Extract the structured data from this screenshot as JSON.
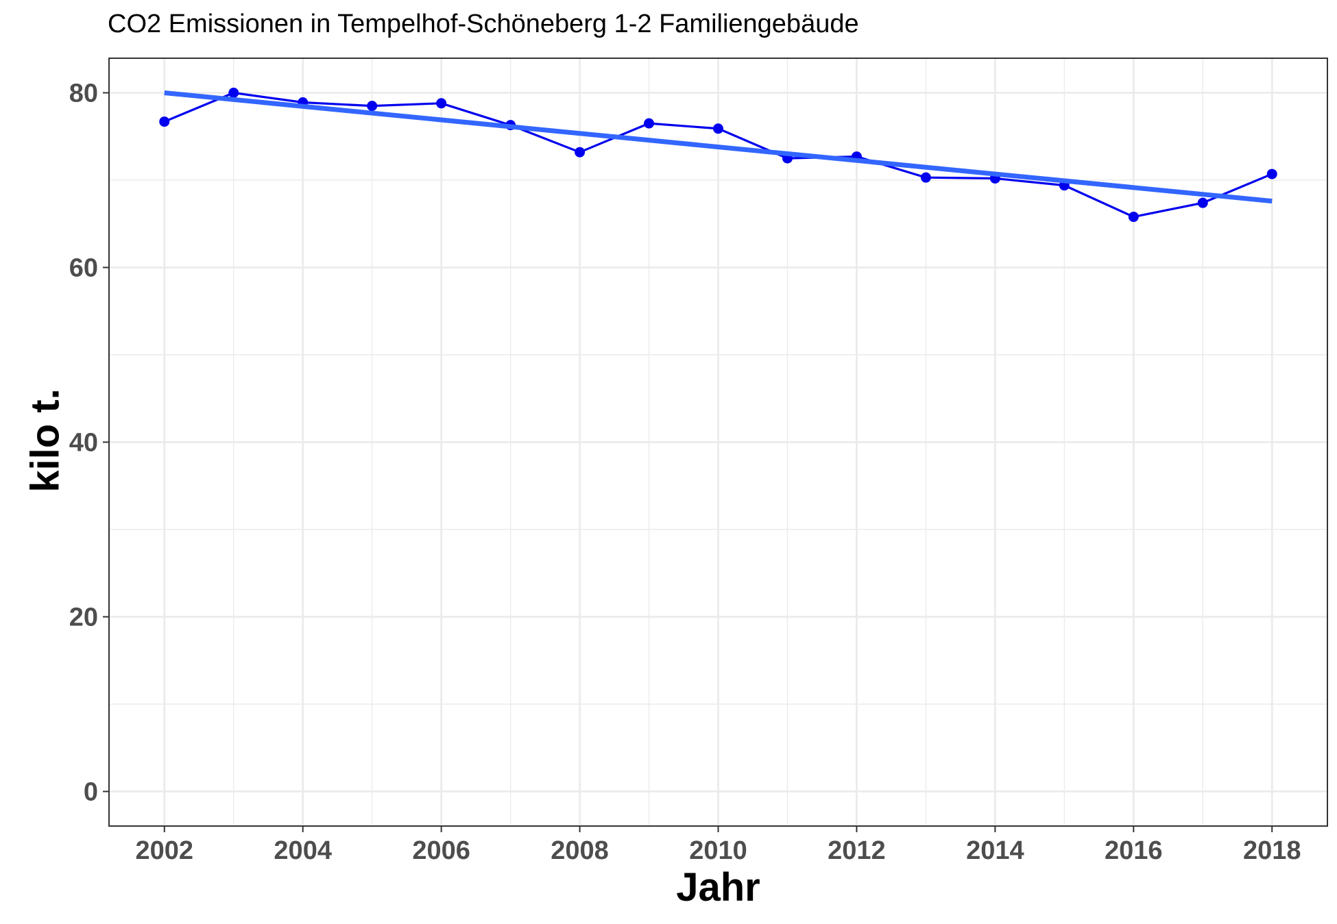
{
  "chart_data": {
    "type": "line",
    "title": "CO2 Emissionen in Tempelhof-Schöneberg 1-2 Familiengebäude",
    "xlabel": "Jahr",
    "ylabel": "kilo t.",
    "x": [
      2002,
      2003,
      2004,
      2005,
      2006,
      2007,
      2008,
      2009,
      2010,
      2011,
      2012,
      2013,
      2014,
      2015,
      2016,
      2017,
      2018
    ],
    "series": [
      {
        "values": [
          76.7,
          80.0,
          78.9,
          78.5,
          78.8,
          76.3,
          73.2,
          76.5,
          75.9,
          72.5,
          72.7,
          70.3,
          70.2,
          69.4,
          65.8,
          67.4,
          70.7
        ],
        "color": "#0000ee",
        "markers": true
      }
    ],
    "trend_line": {
      "type": "linear",
      "start": [
        2002,
        80.0
      ],
      "end": [
        2018,
        67.6
      ],
      "color": "#3366ff"
    },
    "xlim": [
      2001.2,
      2018.8
    ],
    "ylim": [
      -3.96,
      83.96
    ],
    "x_ticks": [
      "2002",
      "2004",
      "2006",
      "2008",
      "2010",
      "2012",
      "2014",
      "2016",
      "2018"
    ],
    "y_ticks": [
      "0",
      "20",
      "40",
      "60",
      "80"
    ],
    "grid": true,
    "legend": "none"
  }
}
